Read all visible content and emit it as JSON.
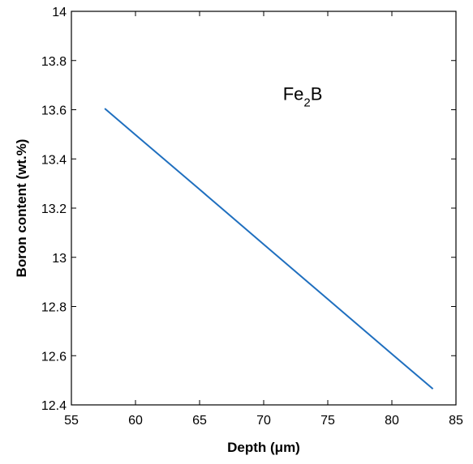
{
  "chart_data": {
    "type": "line",
    "title": "",
    "xlabel": "Depth (μm)",
    "ylabel": "Boron content (wt.%)",
    "xlim": [
      55,
      85
    ],
    "ylim": [
      12.4,
      14
    ],
    "x_ticks": [
      "55",
      "60",
      "65",
      "70",
      "75",
      "80",
      "85"
    ],
    "y_ticks": [
      "12.4",
      "12.6",
      "12.8",
      "13",
      "13.2",
      "13.4",
      "13.6",
      "13.8",
      "14"
    ],
    "grid": false,
    "legend": "none",
    "annotation": {
      "main": "Fe",
      "sub": "2",
      "tail": "B",
      "x": 71.5,
      "y": 13.64
    },
    "series": [
      {
        "color": "#1f6fbf",
        "x": [
          57.6,
          60,
          65,
          70,
          75,
          80,
          83.2
        ],
        "y": [
          13.605,
          13.498,
          13.276,
          13.053,
          12.83,
          12.607,
          12.465
        ]
      }
    ]
  }
}
